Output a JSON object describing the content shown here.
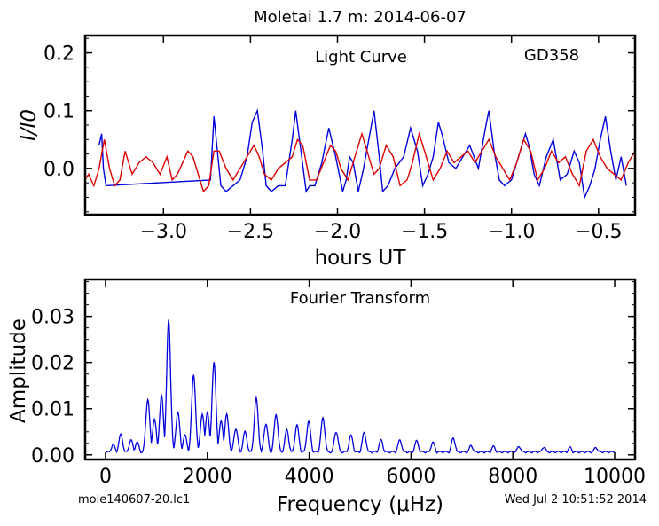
{
  "figure": {
    "title": "Moletai 1.7 m:  2014-06-07",
    "footer_left": "mole140607-20.lc1",
    "footer_right": "Wed Jul  2 10:51:52 2014"
  },
  "chart_data": [
    {
      "type": "line",
      "annotation_left": "Light Curve",
      "annotation_right": "GD358",
      "xlabel": "hours UT",
      "ylabel": "I/I0",
      "xlim": [
        -3.45,
        -0.29
      ],
      "ylim": [
        -0.08,
        0.23
      ],
      "xticks": [
        -3.0,
        -2.5,
        -2.0,
        -1.5,
        -1.0,
        -0.5
      ],
      "xtick_labels": [
        "−3.0",
        "−2.5",
        "−2.0",
        "−1.5",
        "−1.0",
        "−0.5"
      ],
      "yticks": [
        0.0,
        0.1,
        0.2
      ],
      "ytick_labels": [
        "0.0",
        "0.1",
        "0.2"
      ],
      "grid": false,
      "legend": "none",
      "series": [
        {
          "color": "#0000dd",
          "x": [
            -3.37,
            -3.355,
            -3.345,
            -3.33,
            -2.73,
            -2.71,
            -2.69,
            -2.67,
            -2.64,
            -2.6,
            -2.56,
            -2.52,
            -2.49,
            -2.46,
            -2.43,
            -2.41,
            -2.38,
            -2.34,
            -2.3,
            -2.26,
            -2.24,
            -2.21,
            -2.18,
            -2.16,
            -2.13,
            -2.09,
            -2.05,
            -2.01,
            -1.97,
            -1.95,
            -1.93,
            -1.91,
            -1.88,
            -1.85,
            -1.82,
            -1.79,
            -1.76,
            -1.74,
            -1.71,
            -1.67,
            -1.62,
            -1.58,
            -1.54,
            -1.51,
            -1.48,
            -1.45,
            -1.42,
            -1.4,
            -1.36,
            -1.32,
            -1.28,
            -1.24,
            -1.19,
            -1.15,
            -1.13,
            -1.1,
            -1.07,
            -1.04,
            -1.0,
            -0.96,
            -0.92,
            -0.9,
            -0.87,
            -0.84,
            -0.8,
            -0.76,
            -0.72,
            -0.68,
            -0.64,
            -0.61,
            -0.58,
            -0.55,
            -0.52,
            -0.49,
            -0.46,
            -0.43,
            -0.4,
            -0.37,
            -0.34
          ],
          "y": [
            0.04,
            0.06,
            0.0,
            -0.03,
            -0.02,
            0.09,
            0.03,
            -0.03,
            -0.04,
            -0.03,
            -0.02,
            0.02,
            0.08,
            0.1,
            0.03,
            -0.03,
            -0.04,
            -0.03,
            -0.03,
            0.05,
            0.1,
            0.03,
            -0.04,
            -0.03,
            -0.03,
            0.01,
            0.07,
            0.02,
            -0.04,
            -0.02,
            0.02,
            0.01,
            -0.04,
            0.0,
            0.05,
            0.1,
            0.02,
            -0.04,
            -0.03,
            0.0,
            0.02,
            0.07,
            0.03,
            -0.03,
            -0.01,
            0.02,
            0.08,
            0.06,
            0.01,
            0.0,
            0.02,
            0.04,
            0.0,
            0.07,
            0.1,
            0.03,
            -0.02,
            -0.03,
            -0.02,
            0.02,
            0.06,
            0.04,
            -0.01,
            -0.03,
            0.02,
            0.05,
            -0.02,
            -0.01,
            0.03,
            0.01,
            -0.05,
            -0.03,
            0.0,
            0.05,
            0.09,
            0.03,
            -0.02,
            0.02,
            -0.03
          ]
        },
        {
          "color": "#dd0000",
          "x": [
            -3.45,
            -3.43,
            -3.4,
            -3.37,
            -3.34,
            -3.31,
            -3.28,
            -3.25,
            -3.22,
            -3.18,
            -3.14,
            -3.1,
            -3.06,
            -3.02,
            -2.98,
            -2.95,
            -2.92,
            -2.89,
            -2.86,
            -2.83,
            -2.8,
            -2.77,
            -2.74,
            -2.71,
            -2.68,
            -2.64,
            -2.6,
            -2.56,
            -2.52,
            -2.48,
            -2.45,
            -2.42,
            -2.38,
            -2.34,
            -2.3,
            -2.26,
            -2.23,
            -2.2,
            -2.16,
            -2.12,
            -2.08,
            -2.04,
            -2.01,
            -1.98,
            -1.94,
            -1.9,
            -1.86,
            -1.82,
            -1.79,
            -1.76,
            -1.72,
            -1.68,
            -1.64,
            -1.6,
            -1.57,
            -1.53,
            -1.49,
            -1.45,
            -1.41,
            -1.37,
            -1.33,
            -1.29,
            -1.25,
            -1.21,
            -1.17,
            -1.13,
            -1.09,
            -1.05,
            -1.01,
            -0.97,
            -0.93,
            -0.89,
            -0.85,
            -0.81,
            -0.77,
            -0.73,
            -0.69,
            -0.65,
            -0.61,
            -0.57,
            -0.53,
            -0.49,
            -0.45,
            -0.41,
            -0.37,
            -0.33,
            -0.29
          ],
          "y": [
            -0.02,
            -0.01,
            -0.03,
            0.0,
            0.05,
            0.0,
            -0.03,
            -0.02,
            0.03,
            -0.01,
            0.01,
            0.02,
            0.01,
            -0.01,
            0.02,
            -0.02,
            -0.01,
            0.01,
            0.03,
            0.02,
            -0.01,
            -0.04,
            -0.03,
            0.03,
            0.03,
            0.0,
            -0.02,
            0.0,
            0.02,
            0.04,
            0.02,
            -0.01,
            -0.02,
            0.0,
            0.01,
            0.02,
            0.05,
            0.04,
            -0.02,
            -0.02,
            0.01,
            0.04,
            0.03,
            0.0,
            -0.02,
            0.02,
            0.06,
            0.02,
            -0.01,
            0.0,
            0.04,
            0.02,
            -0.03,
            -0.02,
            0.01,
            0.06,
            0.02,
            -0.02,
            0.0,
            0.03,
            0.01,
            0.02,
            0.03,
            0.01,
            0.03,
            0.05,
            0.02,
            0.0,
            -0.02,
            0.01,
            0.05,
            0.03,
            -0.02,
            0.0,
            0.03,
            0.01,
            0.02,
            -0.01,
            -0.03,
            0.03,
            0.05,
            0.02,
            0.0,
            -0.01,
            -0.02,
            0.01,
            0.03
          ]
        }
      ]
    },
    {
      "type": "line",
      "annotation": "Fourier Transform",
      "xlabel": "Frequency (μHz)",
      "ylabel": "Amplitude",
      "xlim": [
        -400,
        10400
      ],
      "ylim": [
        -0.001,
        0.038
      ],
      "xticks": [
        0,
        2000,
        4000,
        6000,
        8000,
        10000
      ],
      "xtick_labels": [
        "0",
        "2000",
        "4000",
        "6000",
        "8000",
        "10000"
      ],
      "yticks": [
        0.0,
        0.01,
        0.02,
        0.03
      ],
      "ytick_labels": [
        "0.00",
        "0.01",
        "0.02",
        "0.03"
      ],
      "grid": false,
      "legend": "none",
      "series": [
        {
          "color": "#0000dd",
          "peaks": [
            {
              "f": 150,
              "a": 0.002
            },
            {
              "f": 300,
              "a": 0.0042
            },
            {
              "f": 500,
              "a": 0.003
            },
            {
              "f": 620,
              "a": 0.0025
            },
            {
              "f": 830,
              "a": 0.0118
            },
            {
              "f": 960,
              "a": 0.0075
            },
            {
              "f": 1100,
              "a": 0.0125
            },
            {
              "f": 1240,
              "a": 0.029
            },
            {
              "f": 1420,
              "a": 0.009
            },
            {
              "f": 1560,
              "a": 0.004
            },
            {
              "f": 1730,
              "a": 0.0172
            },
            {
              "f": 1900,
              "a": 0.0085
            },
            {
              "f": 2000,
              "a": 0.009
            },
            {
              "f": 2130,
              "a": 0.0198
            },
            {
              "f": 2270,
              "a": 0.007
            },
            {
              "f": 2380,
              "a": 0.0085
            },
            {
              "f": 2560,
              "a": 0.0055
            },
            {
              "f": 2740,
              "a": 0.0048
            },
            {
              "f": 2960,
              "a": 0.012
            },
            {
              "f": 3150,
              "a": 0.0065
            },
            {
              "f": 3350,
              "a": 0.0085
            },
            {
              "f": 3560,
              "a": 0.0052
            },
            {
              "f": 3760,
              "a": 0.0062
            },
            {
              "f": 3990,
              "a": 0.007
            },
            {
              "f": 4270,
              "a": 0.0078
            },
            {
              "f": 4530,
              "a": 0.0048
            },
            {
              "f": 4820,
              "a": 0.004
            },
            {
              "f": 5080,
              "a": 0.0046
            },
            {
              "f": 5410,
              "a": 0.003
            },
            {
              "f": 5780,
              "a": 0.003
            },
            {
              "f": 6110,
              "a": 0.0028
            },
            {
              "f": 6430,
              "a": 0.0025
            },
            {
              "f": 6830,
              "a": 0.0034
            },
            {
              "f": 7180,
              "a": 0.0018
            },
            {
              "f": 7620,
              "a": 0.0016
            },
            {
              "f": 8120,
              "a": 0.0016
            },
            {
              "f": 8610,
              "a": 0.0015
            },
            {
              "f": 9120,
              "a": 0.0014
            },
            {
              "f": 9630,
              "a": 0.0014
            }
          ],
          "f_range": [
            0,
            10000
          ]
        }
      ]
    }
  ]
}
